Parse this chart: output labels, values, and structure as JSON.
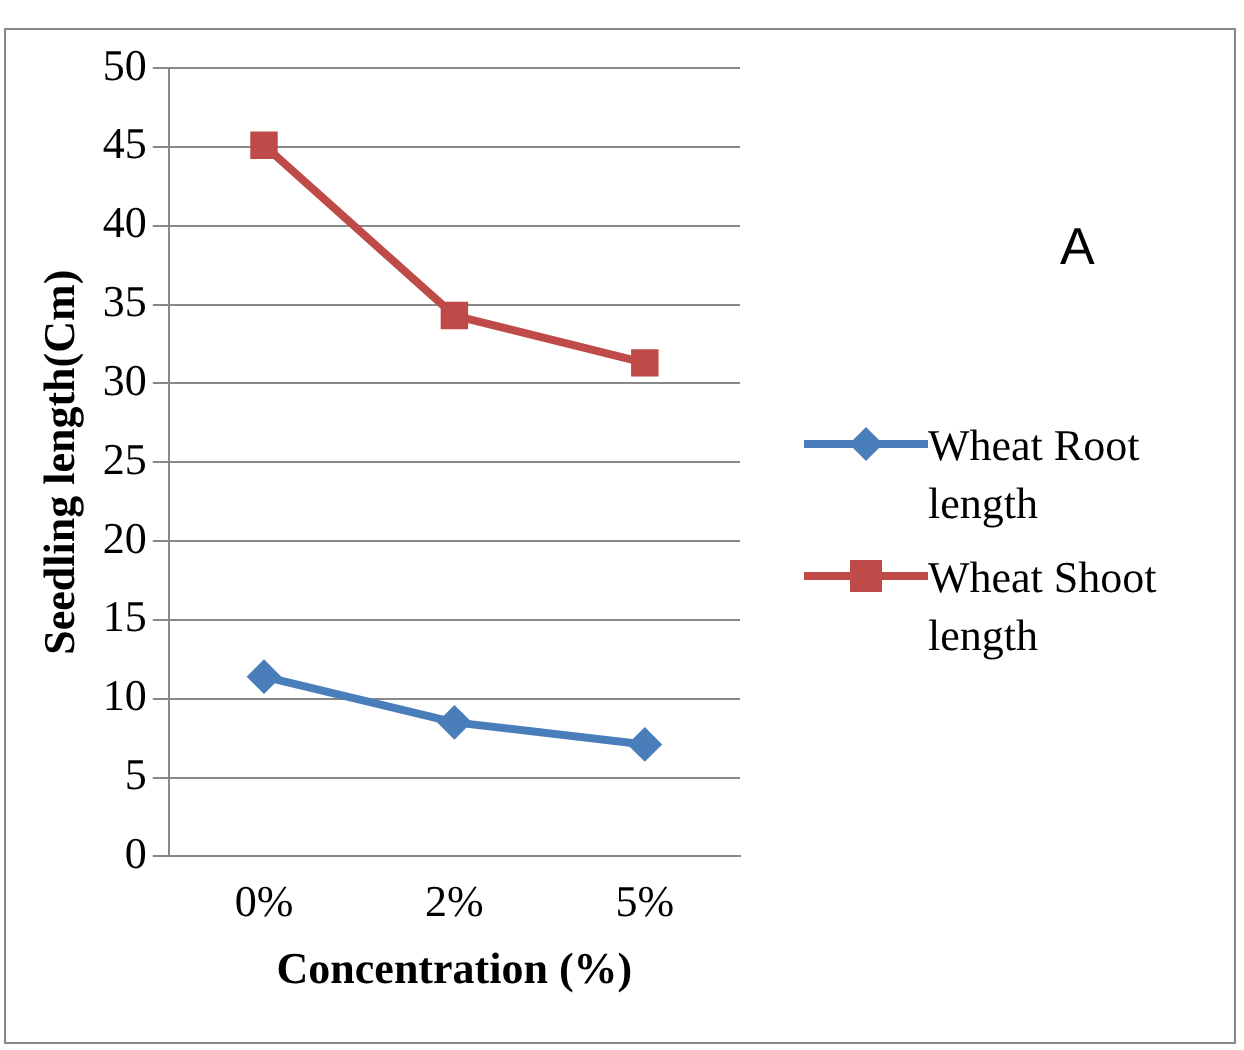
{
  "chart_data": {
    "type": "line",
    "categories": [
      "0%",
      "2%",
      "5%"
    ],
    "xlabel": "Concentration (%)",
    "ylabel": "Seedling length(Cm)",
    "series": [
      {
        "name": "Wheat Root length",
        "color": "#4a7ebb",
        "values": [
          11.4,
          8.5,
          7.1
        ],
        "marker": "diamond"
      },
      {
        "name": "Wheat Shoot length",
        "color": "#be4b48",
        "values": [
          45.1,
          34.3,
          31.3
        ],
        "marker": "square"
      }
    ],
    "ylim": [
      0,
      50
    ],
    "yticks": [
      0,
      5,
      10,
      15,
      20,
      25,
      30,
      35,
      40,
      45,
      50
    ],
    "grid": "y",
    "legend": "right",
    "line_style": "solid",
    "annotations": [
      "A"
    ]
  }
}
